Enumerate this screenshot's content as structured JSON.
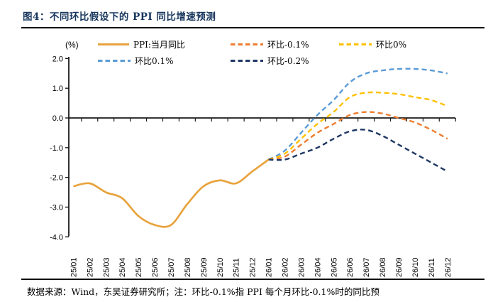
{
  "figure": {
    "title": "图4：不同环比假设下的 PPI 同比增速预测",
    "footer": "数据来源：Wind，东吴证券研究所；注：环比-0.1%指 PPI 每个月环比-0.1%时的同比预"
  },
  "colors": {
    "title_navy": "#17365D",
    "axis_black": "#1a1a1a",
    "ppi_orange": "#E8A33C",
    "mom_minus01_orange": "#ED7D31",
    "mom_0_yellow": "#FFC000",
    "mom_plus01_blue": "#5B9BD5",
    "mom_minus02_navy": "#1F3864"
  },
  "chart_data": {
    "type": "line",
    "unit_label": "(%)",
    "grid": false,
    "legend_position": "top",
    "ylim": [
      -4.0,
      2.0
    ],
    "yticks": [
      "2.0",
      "1.0",
      "0.0",
      "-1.0",
      "-2.0",
      "-3.0",
      "-4.0"
    ],
    "x": [
      "25/01",
      "25/02",
      "25/03",
      "25/04",
      "25/05",
      "25/06",
      "25/07",
      "25/08",
      "25/09",
      "25/10",
      "25/11",
      "25/12",
      "26/01",
      "26/02",
      "26/03",
      "26/04",
      "26/05",
      "26/06",
      "26/07",
      "26/08",
      "26/09",
      "26/10",
      "26/11",
      "26/12"
    ],
    "series": [
      {
        "name": "PPI:当月同比",
        "color": "#E8A33C",
        "dash": false,
        "start_index": 0,
        "values": [
          -2.3,
          -2.2,
          -2.5,
          -2.7,
          -3.3,
          -3.6,
          -3.6,
          -2.9,
          -2.3,
          -2.1,
          -2.2,
          -1.8,
          -1.4
        ]
      },
      {
        "name": "环比-0.1%",
        "color": "#ED7D31",
        "dash": true,
        "start_index": 12,
        "values": [
          -1.4,
          -1.3,
          -0.9,
          -0.5,
          -0.2,
          0.1,
          0.2,
          0.15,
          0.0,
          -0.15,
          -0.4,
          -0.7
        ]
      },
      {
        "name": "环比0%",
        "color": "#FFC000",
        "dash": true,
        "start_index": 12,
        "values": [
          -1.4,
          -1.2,
          -0.7,
          -0.2,
          0.2,
          0.7,
          0.85,
          0.85,
          0.8,
          0.7,
          0.6,
          0.4
        ]
      },
      {
        "name": "环比0.1%",
        "color": "#5B9BD5",
        "dash": true,
        "start_index": 12,
        "values": [
          -1.4,
          -1.1,
          -0.5,
          0.1,
          0.6,
          1.2,
          1.5,
          1.6,
          1.65,
          1.65,
          1.6,
          1.5
        ]
      },
      {
        "name": "环比-0.2%",
        "color": "#1F3864",
        "dash": true,
        "start_index": 12,
        "values": [
          -1.4,
          -1.4,
          -1.2,
          -1.0,
          -0.7,
          -0.45,
          -0.4,
          -0.6,
          -0.9,
          -1.2,
          -1.5,
          -1.8
        ]
      }
    ],
    "legend_rows": [
      [
        0,
        1,
        2
      ],
      [
        3,
        4
      ]
    ],
    "draw_order": [
      3,
      2,
      1,
      4,
      0
    ]
  }
}
